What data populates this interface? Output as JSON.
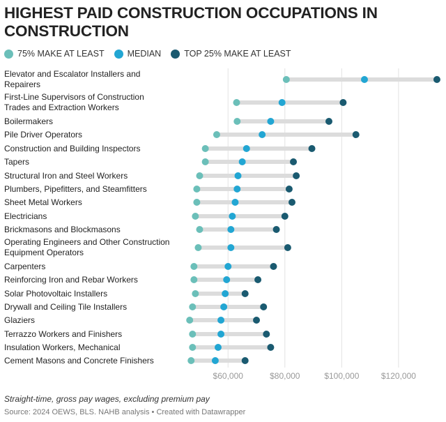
{
  "title": "HIGHEST PAID CONSTRUCTION OCCUPATIONS IN CONSTRUCTION",
  "legend": [
    {
      "label": "75% MAKE AT LEAST",
      "color": "#6bbfb9"
    },
    {
      "label": "MEDIAN",
      "color": "#22a6d3"
    },
    {
      "label": "TOP 25% MAKE AT LEAST",
      "color": "#1a5a70"
    }
  ],
  "footer": {
    "note": "Straight-time, gross pay wages, excluding premium pay",
    "source": "Source: 2024 OEWS, BLS. NAHB analysis • Created with Datawrapper"
  },
  "chart_data": {
    "type": "dot-range",
    "title": "HIGHEST PAID CONSTRUCTION OCCUPATIONS IN CONSTRUCTION",
    "xlim": [
      44000,
      134000
    ],
    "x_ticks": [
      60000,
      80000,
      100000,
      120000
    ],
    "x_tick_labels": [
      "$60,000",
      "$80,000",
      "$100,000",
      "$120,000"
    ],
    "grid": true,
    "legend_position": "top-left",
    "series": [
      {
        "name": "75% MAKE AT LEAST",
        "color": "#6bbfb9"
      },
      {
        "name": "MEDIAN",
        "color": "#22a6d3"
      },
      {
        "name": "TOP 25% MAKE AT LEAST",
        "color": "#1a5a70"
      }
    ],
    "rows": [
      {
        "label": "Elevator and Escalator Installers and Repairers",
        "p25": 80500,
        "median": 108000,
        "p75": 133500
      },
      {
        "label": "First-Line Supervisors of Construction Trades and Extraction Workers",
        "p25": 63000,
        "median": 79000,
        "p75": 100500
      },
      {
        "label": "Boilermakers",
        "p25": 63200,
        "median": 75000,
        "p75": 95500
      },
      {
        "label": "Pile Driver Operators",
        "p25": 56000,
        "median": 72000,
        "p75": 105000
      },
      {
        "label": "Construction and Building Inspectors",
        "p25": 52000,
        "median": 66500,
        "p75": 89500
      },
      {
        "label": "Tapers",
        "p25": 52000,
        "median": 65000,
        "p75": 83000
      },
      {
        "label": "Structural Iron and Steel Workers",
        "p25": 50000,
        "median": 63500,
        "p75": 84000
      },
      {
        "label": "Plumbers, Pipefitters, and Steamfitters",
        "p25": 49000,
        "median": 63200,
        "p75": 81500
      },
      {
        "label": "Sheet Metal Workers",
        "p25": 49000,
        "median": 62500,
        "p75": 82500
      },
      {
        "label": "Electricians",
        "p25": 48500,
        "median": 61500,
        "p75": 80000
      },
      {
        "label": "Brickmasons and Blockmasons",
        "p25": 50000,
        "median": 61000,
        "p75": 77000
      },
      {
        "label": "Operating Engineers and Other Construction Equipment Operators",
        "p25": 49500,
        "median": 61000,
        "p75": 81000
      },
      {
        "label": "Carpenters",
        "p25": 48000,
        "median": 60000,
        "p75": 76000
      },
      {
        "label": "Reinforcing Iron and Rebar Workers",
        "p25": 48000,
        "median": 59500,
        "p75": 70500
      },
      {
        "label": "Solar Photovoltaic Installers",
        "p25": 48500,
        "median": 59000,
        "p75": 66000
      },
      {
        "label": "Drywall and Ceiling Tile Installers",
        "p25": 47500,
        "median": 58500,
        "p75": 72500
      },
      {
        "label": "Glaziers",
        "p25": 46500,
        "median": 57500,
        "p75": 70000
      },
      {
        "label": "Terrazzo Workers and Finishers",
        "p25": 47500,
        "median": 57500,
        "p75": 73500
      },
      {
        "label": "Insulation Workers, Mechanical",
        "p25": 47500,
        "median": 56500,
        "p75": 75000
      },
      {
        "label": "Cement Masons and Concrete Finishers",
        "p25": 47000,
        "median": 55500,
        "p75": 66000
      }
    ]
  }
}
